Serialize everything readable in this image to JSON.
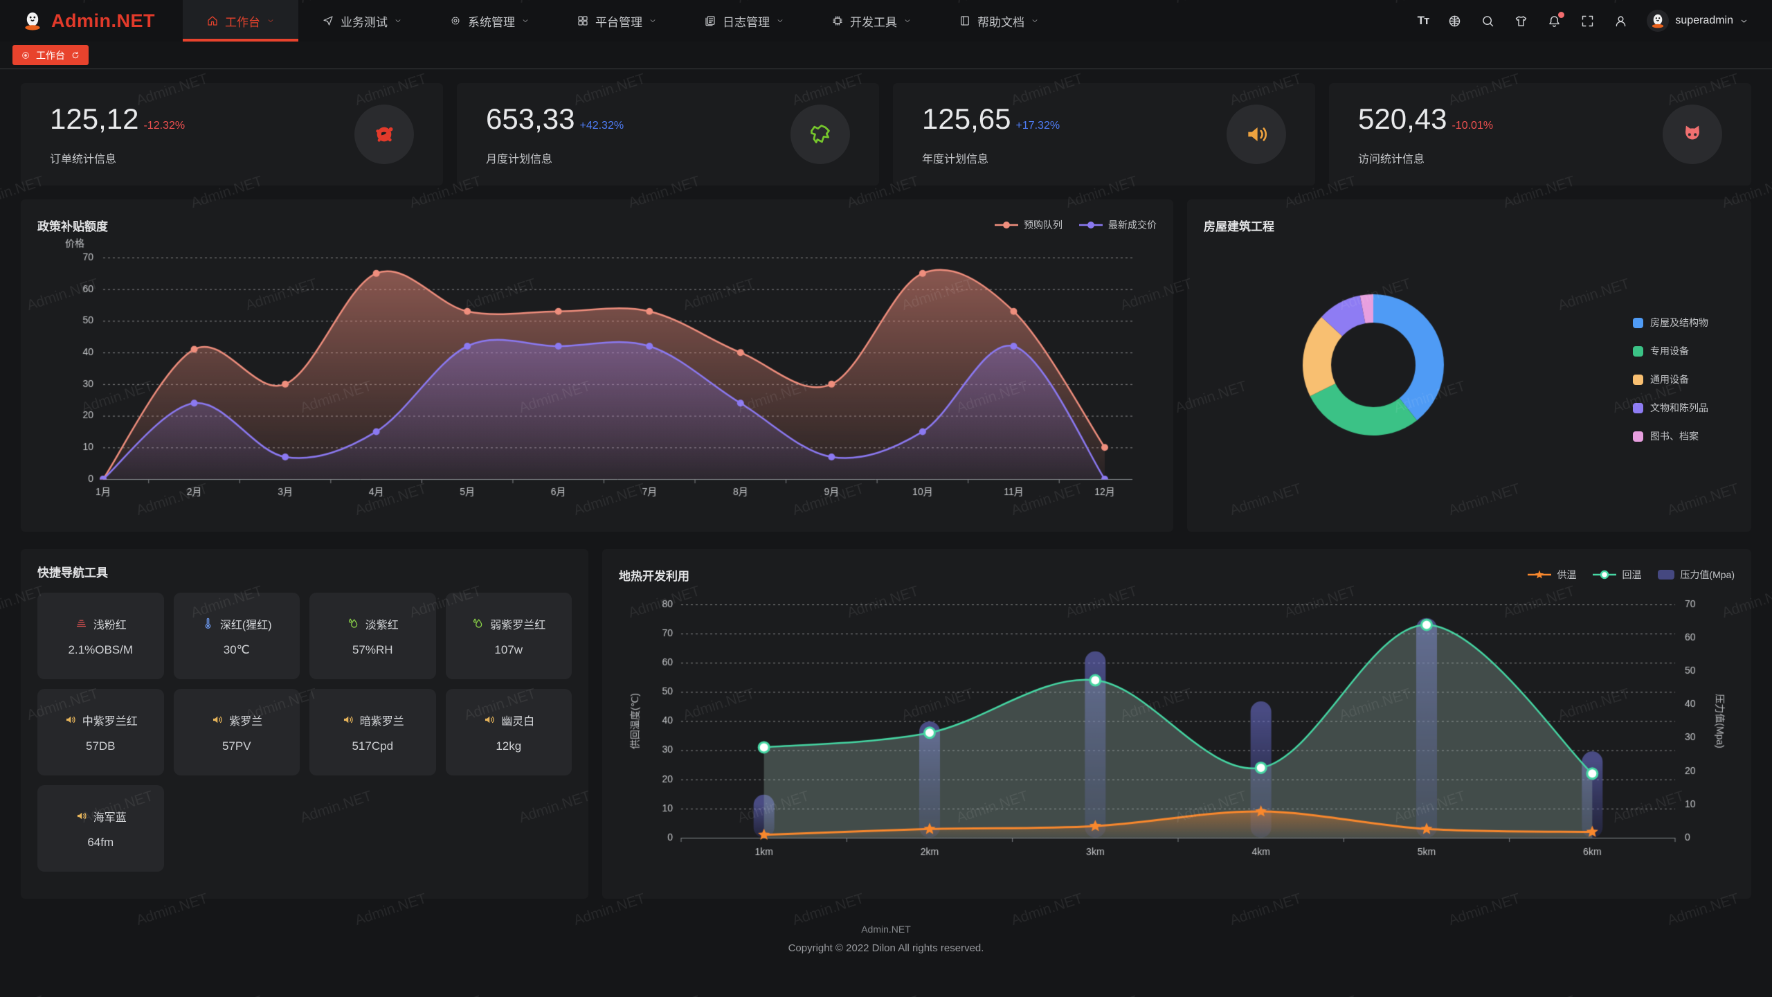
{
  "watermark_text": "Admin.NET",
  "colors": {
    "accent": "#e8432d",
    "positive": "#4e7cf5",
    "negative": "#ee5050"
  },
  "navbar": {
    "logo_text": "Admin.NET",
    "menu": [
      {
        "label": "工作台",
        "icon": "home-icon",
        "active": true
      },
      {
        "label": "业务测试",
        "icon": "send-icon",
        "active": false
      },
      {
        "label": "系统管理",
        "icon": "gear-icon",
        "active": false
      },
      {
        "label": "平台管理",
        "icon": "grid-icon",
        "active": false
      },
      {
        "label": "日志管理",
        "icon": "log-icon",
        "active": false
      },
      {
        "label": "开发工具",
        "icon": "chip-icon",
        "active": false
      },
      {
        "label": "帮助文档",
        "icon": "book-icon",
        "active": false
      }
    ],
    "right_icons": [
      {
        "icon": "font-size-icon",
        "text": "Tт",
        "badge": false
      },
      {
        "icon": "language-icon",
        "badge": false
      },
      {
        "icon": "search-icon",
        "badge": false
      },
      {
        "icon": "theme-icon",
        "badge": false
      },
      {
        "icon": "bell-icon",
        "badge": true
      },
      {
        "icon": "fullscreen-icon",
        "badge": false
      },
      {
        "icon": "person-icon",
        "badge": false
      }
    ],
    "username": "superadmin"
  },
  "tabbar": {
    "tabs": [
      {
        "label": "工作台",
        "active": true
      }
    ]
  },
  "stat_cards": [
    {
      "value": "125,12",
      "delta": "-12.32%",
      "trend": "down",
      "label": "订单统计信息",
      "icon": "splash-icon",
      "icon_color": "#e23a2b"
    },
    {
      "value": "653,33",
      "delta": "+42.32%",
      "trend": "up",
      "label": "月度计划信息",
      "icon": "map-icon",
      "icon_color": "#76c72c"
    },
    {
      "value": "125,65",
      "delta": "+17.32%",
      "trend": "up",
      "label": "年度计划信息",
      "icon": "horn-icon",
      "icon_color": "#eda23f"
    },
    {
      "value": "520,43",
      "delta": "-10.01%",
      "trend": "down",
      "label": "访问统计信息",
      "icon": "cat-icon",
      "icon_color": "#f07070"
    }
  ],
  "chart_data": [
    {
      "type": "area",
      "title": "政策补贴额度",
      "ylabel": "价格",
      "categories": [
        "1月",
        "2月",
        "3月",
        "4月",
        "5月",
        "6月",
        "7月",
        "8月",
        "9月",
        "10月",
        "11月",
        "12月"
      ],
      "ylim": [
        0,
        70
      ],
      "ytick_step": 10,
      "grid": "dashed",
      "legend_position": "top-right",
      "series": [
        {
          "name": "预购队列",
          "color": "#ef8e7d",
          "values": [
            0,
            41,
            30,
            65,
            53,
            53,
            53,
            40,
            30,
            65,
            53,
            10
          ]
        },
        {
          "name": "最新成交价",
          "color": "#8b79f1",
          "values": [
            0,
            24,
            7,
            15,
            42,
            42,
            42,
            24,
            7,
            15,
            42,
            0
          ]
        }
      ]
    },
    {
      "type": "pie",
      "title": "房屋建筑工程",
      "donut": true,
      "legend_position": "right",
      "slices": [
        {
          "label": "房屋及结构物",
          "value": 39,
          "color": "#4f9bf5"
        },
        {
          "label": "专用设备",
          "value": 28,
          "color": "#3bc286"
        },
        {
          "label": "通用设备",
          "value": 19,
          "color": "#f8bf71"
        },
        {
          "label": "文物和陈列品",
          "value": 10,
          "color": "#8e7cf3"
        },
        {
          "label": "图书、档案",
          "value": 3,
          "color": "#e79fdf"
        }
      ]
    },
    {
      "type": "line+bar",
      "title": "地热开发利用",
      "categories": [
        "1km",
        "2km",
        "3km",
        "4km",
        "5km",
        "6km"
      ],
      "left_axis": {
        "label": "供回温度(℃)",
        "min": 0,
        "max": 80,
        "step": 10
      },
      "right_axis": {
        "label": "压力值(Mpa)",
        "min": 0,
        "max": 70,
        "step": 10
      },
      "grid": "dashed",
      "legend_position": "top-right",
      "series": [
        {
          "name": "供温",
          "type": "line",
          "axis": "left",
          "marker": "star",
          "color": "#f9882d",
          "values": [
            1,
            3,
            4,
            9,
            3,
            2
          ]
        },
        {
          "name": "回温",
          "type": "line",
          "axis": "left",
          "marker": "circle",
          "color": "#46d6a3",
          "values": [
            31,
            36,
            54,
            24,
            73,
            22
          ]
        },
        {
          "name": "压力值(Mpa)",
          "type": "bar",
          "axis": "right",
          "color": "#7a7ee0",
          "values": [
            10,
            32,
            53,
            38,
            63,
            23
          ]
        }
      ]
    }
  ],
  "quick_nav": {
    "title": "快捷导航工具",
    "items": [
      {
        "name": "浅粉红",
        "value": "2.1%OBS/M",
        "icon": "haze-icon",
        "color": "#e05252"
      },
      {
        "name": "深红(猩红)",
        "value": "30℃",
        "icon": "thermometer-icon",
        "color": "#6e9bf2"
      },
      {
        "name": "淡紫红",
        "value": "57%RH",
        "icon": "humidity-icon",
        "color": "#8bd448"
      },
      {
        "name": "弱紫罗兰红",
        "value": "107w",
        "icon": "humidity-icon",
        "color": "#8bd448"
      },
      {
        "name": "中紫罗兰红",
        "value": "57DB",
        "icon": "speaker-icon",
        "color": "#e6b45a"
      },
      {
        "name": "紫罗兰",
        "value": "57PV",
        "icon": "speaker-icon",
        "color": "#e6b45a"
      },
      {
        "name": "暗紫罗兰",
        "value": "517Cpd",
        "icon": "speaker-icon",
        "color": "#e6b45a"
      },
      {
        "name": "幽灵白",
        "value": "12kg",
        "icon": "speaker-icon",
        "color": "#e6b45a"
      },
      {
        "name": "海军蓝",
        "value": "64fm",
        "icon": "speaker-icon",
        "color": "#e6b45a"
      }
    ]
  },
  "footer": {
    "line1": "Admin.NET",
    "line2": "Copyright © 2022 Dilon All rights reserved."
  }
}
